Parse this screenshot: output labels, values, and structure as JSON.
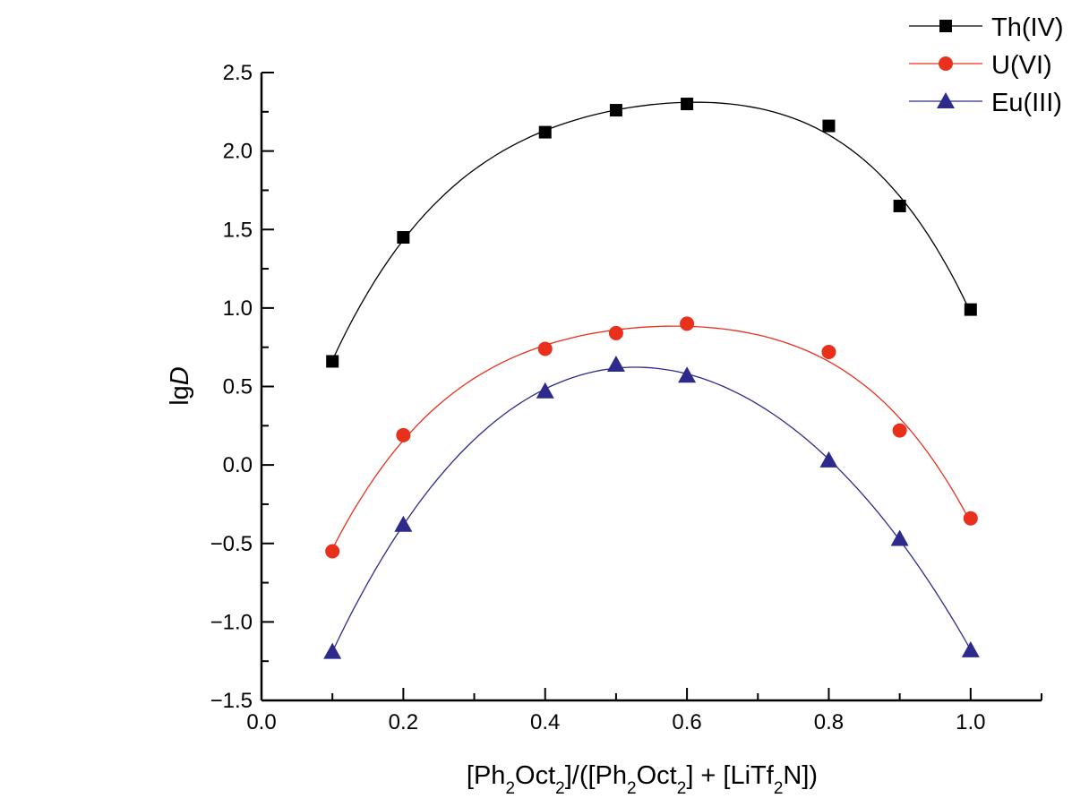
{
  "chart_data": {
    "type": "line",
    "title": "",
    "xlabel": "[Ph2Oct2]/([Ph2Oct2] + [LiTf2N])",
    "xlabel_parts": [
      "[Ph",
      "2",
      "Oct",
      "2",
      "]/([Ph",
      "2",
      "Oct",
      "2",
      "] + [LiTf",
      "2",
      "N])"
    ],
    "ylabel": "lgD",
    "ylabel_parts": [
      "lg",
      "D"
    ],
    "xlim": [
      0.0,
      1.1
    ],
    "ylim": [
      -1.5,
      2.5
    ],
    "xticks": [
      "0.0",
      "0.2",
      "0.4",
      "0.6",
      "0.8",
      "1.0"
    ],
    "yticks": [
      "-1.5",
      "-1.0",
      "-0.5",
      "0.0",
      "0.5",
      "1.0",
      "1.5",
      "2.0",
      "2.5"
    ],
    "grid": false,
    "legend_position": "top-right",
    "x": [
      0.1,
      0.2,
      0.4,
      0.5,
      0.6,
      0.8,
      0.9,
      1.0
    ],
    "series": [
      {
        "name": "Th(IV)",
        "marker": "square",
        "color": "#000000",
        "line_color": "#000000",
        "values": [
          0.66,
          1.45,
          2.12,
          2.26,
          2.3,
          2.16,
          1.65,
          0.99
        ]
      },
      {
        "name": "U(VI)",
        "marker": "circle",
        "color": "#e8301c",
        "line_color": "#e8301c",
        "values": [
          -0.55,
          0.19,
          0.74,
          0.84,
          0.9,
          0.72,
          0.22,
          -0.34
        ]
      },
      {
        "name": "Eu(III)",
        "marker": "triangle",
        "color": "#2e2a8c",
        "line_color": "#2e2a8c",
        "values": [
          -1.19,
          -0.38,
          0.47,
          0.64,
          0.57,
          0.03,
          -0.47,
          -1.18
        ]
      }
    ]
  }
}
